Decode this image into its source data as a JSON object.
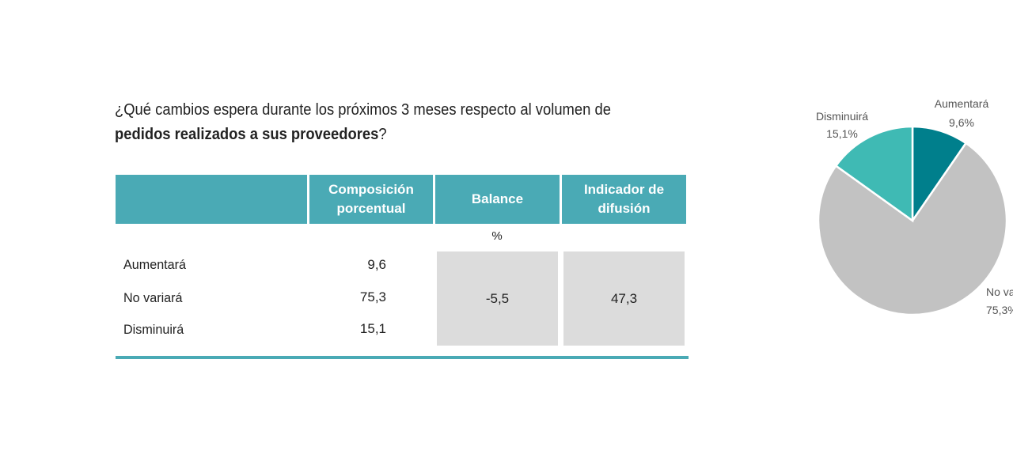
{
  "question": {
    "part1": "¿Qué cambios espera durante los próximos 3 meses respecto al volumen de",
    "part2_bold": "pedidos realizados a sus proveedores",
    "part3": "?"
  },
  "table": {
    "headers": [
      "",
      "Composición porcentual",
      "Balance",
      "Indicador de difusión"
    ],
    "unit": "%",
    "rows": [
      {
        "label": "Aumentará",
        "value": "9,6"
      },
      {
        "label": "No variará",
        "value": "75,3"
      },
      {
        "label": "Disminuirá",
        "value": "15,1"
      }
    ],
    "balance": "-5,5",
    "diffusion": "47,3"
  },
  "chart_data": {
    "type": "pie",
    "title": "",
    "slices": [
      {
        "name": "Aumentará",
        "value": 9.6,
        "label": "9,6%",
        "color": "#007f8c"
      },
      {
        "name": "No variará",
        "value": 75.3,
        "label": "75,3%",
        "color": "#c2c2c2"
      },
      {
        "name": "Disminuirá",
        "value": 15.1,
        "label": "15,1%",
        "color": "#3fbab4"
      }
    ]
  }
}
